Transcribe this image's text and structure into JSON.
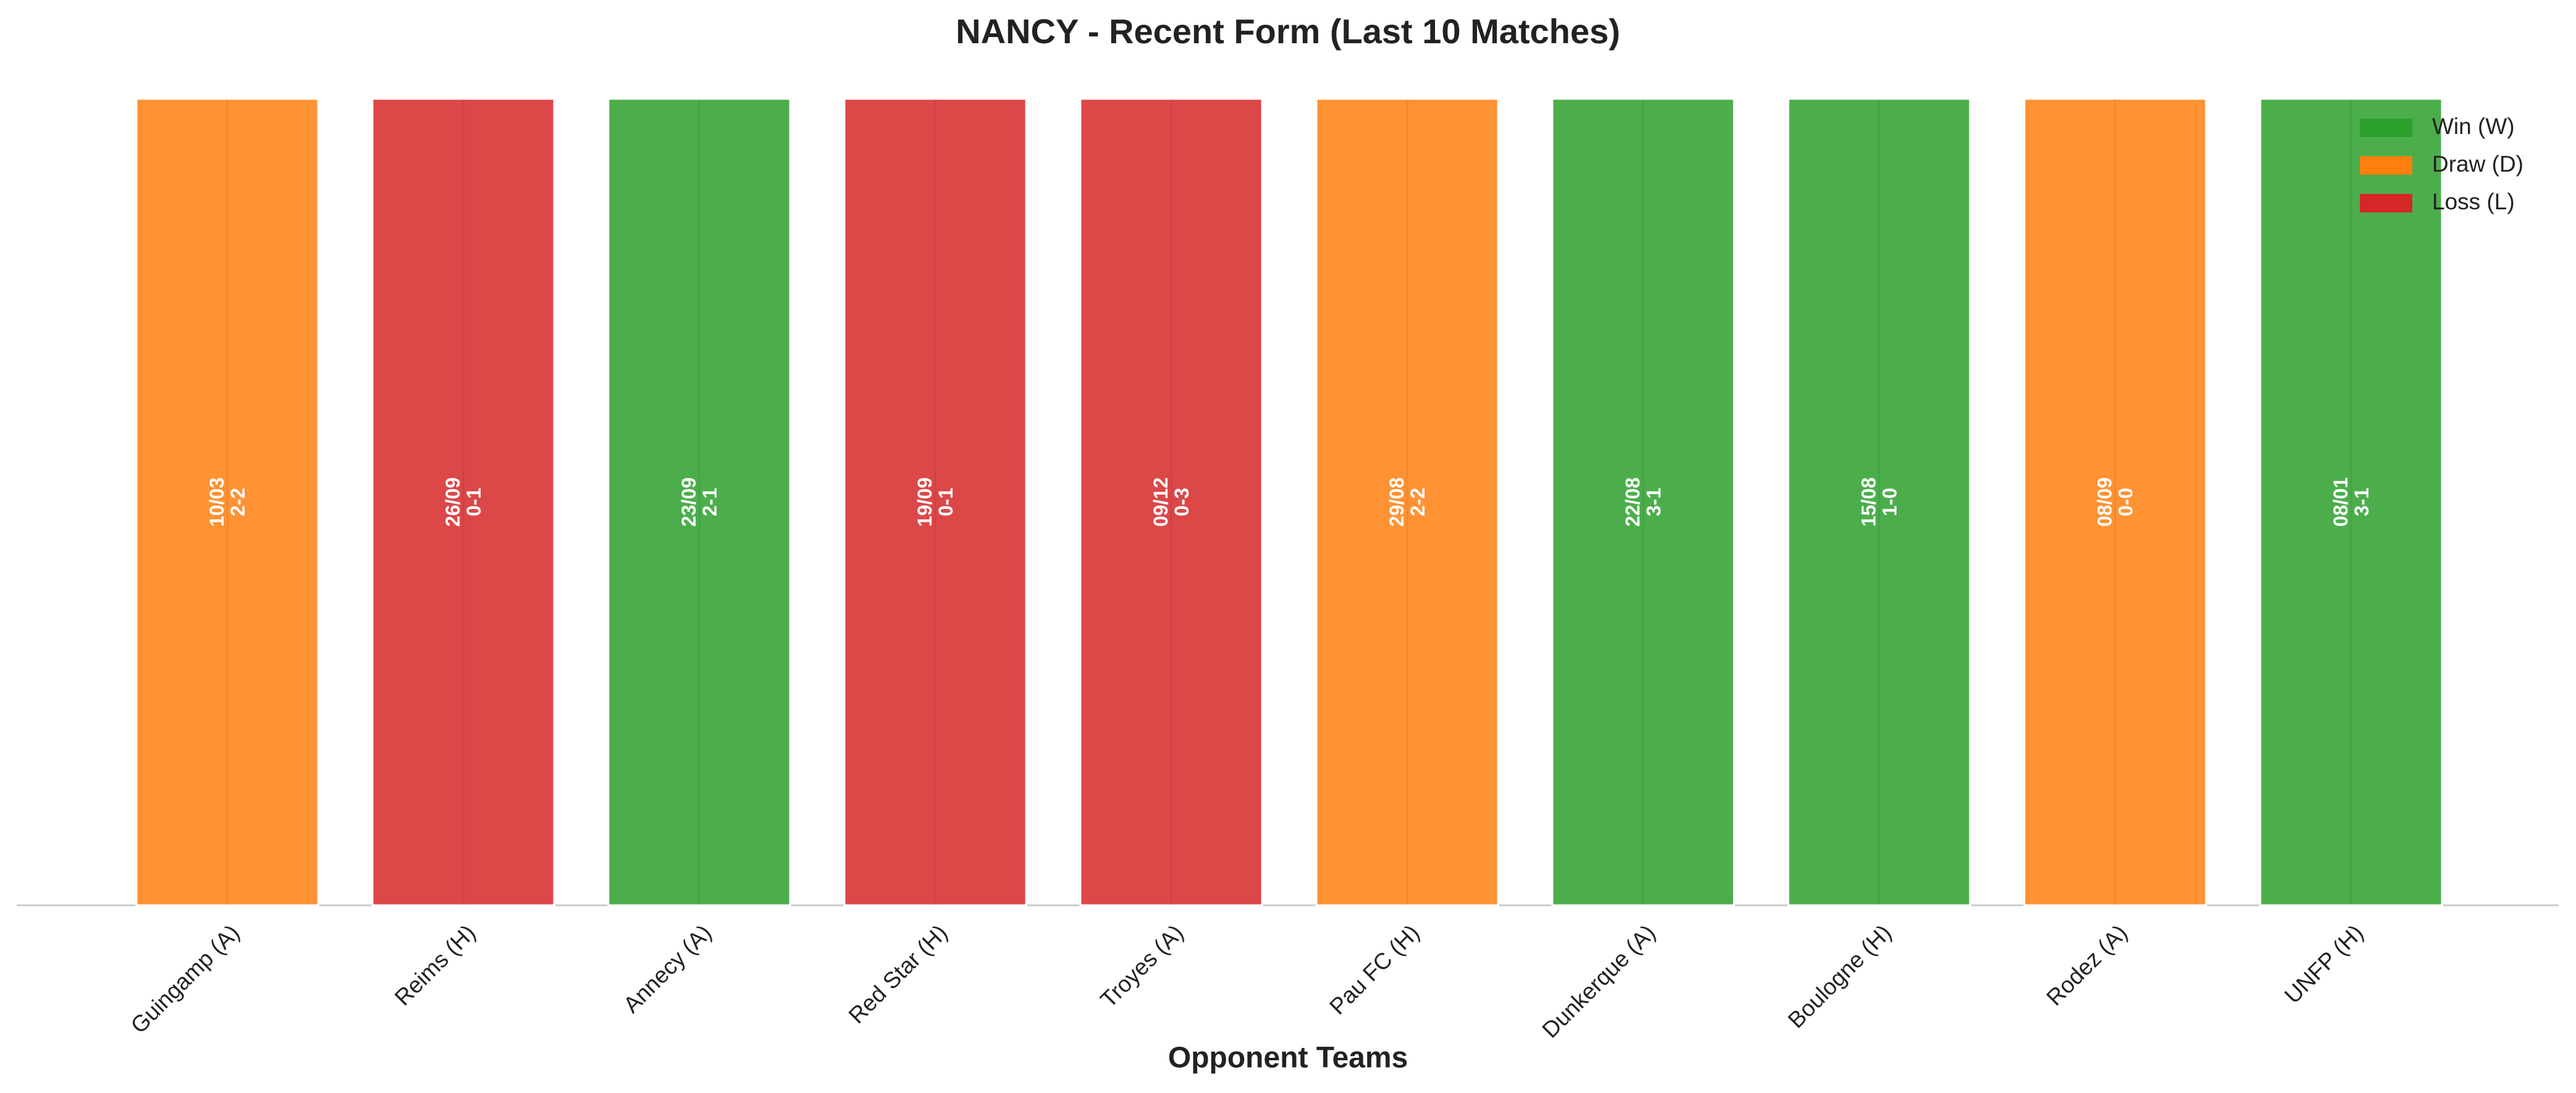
{
  "chart_data": {
    "type": "bar",
    "title": "NANCY - Recent Form (Last 10 Matches)",
    "x_label": "Opponent Teams",
    "categories": [
      "Guingamp (A)",
      "Reims (H)",
      "Annecy (A)",
      "Red Star (H)",
      "Troyes (A)",
      "Pau FC (H)",
      "Dunkerque (A)",
      "Boulogne (H)",
      "Rodez (A)",
      "UNFP (H)"
    ],
    "values": [
      1,
      1,
      1,
      1,
      1,
      1,
      1,
      1,
      1,
      1
    ],
    "ylim": [
      0,
      1
    ],
    "colors": [
      "#ff7f0e",
      "#d62728",
      "#2ca02c",
      "#d62728",
      "#d62728",
      "#ff7f0e",
      "#2ca02c",
      "#2ca02c",
      "#ff7f0e",
      "#2ca02c"
    ],
    "dates": [
      "10/03",
      "26/09",
      "23/09",
      "19/09",
      "09/12",
      "29/08",
      "22/08",
      "15/08",
      "08/09",
      "08/01"
    ],
    "scores": [
      "2-2",
      "0-1",
      "2-1",
      "0-1",
      "0-3",
      "2-2",
      "3-1",
      "1-0",
      "0-0",
      "3-1"
    ],
    "legend": [
      {
        "name": "Win (W)",
        "color": "#2ca02c"
      },
      {
        "name": "Draw (D)",
        "color": "#ff7f0e"
      },
      {
        "name": "Loss (L)",
        "color": "#d62728"
      }
    ],
    "legend_position": "upper right"
  }
}
